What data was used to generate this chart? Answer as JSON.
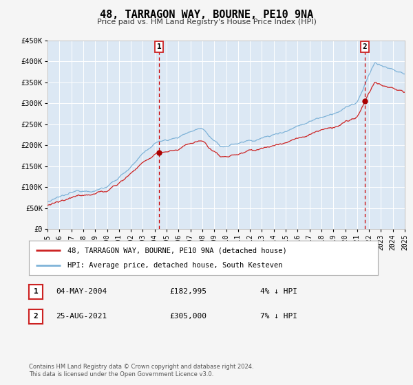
{
  "title": "48, TARRAGON WAY, BOURNE, PE10 9NA",
  "subtitle": "Price paid vs. HM Land Registry's House Price Index (HPI)",
  "ylim": [
    0,
    450000
  ],
  "xlim_start": 1995,
  "xlim_end": 2025,
  "fig_bg_color": "#f5f5f5",
  "plot_bg_color": "#dce8f4",
  "grid_color": "#ffffff",
  "hpi_line_color": "#7fb3d8",
  "price_line_color": "#cc2222",
  "vline_color": "#cc0000",
  "marker_color": "#aa0000",
  "sale1_x": 2004.37,
  "sale1_y": 182995,
  "sale2_x": 2021.65,
  "sale2_y": 305000,
  "legend_label1": "48, TARRAGON WAY, BOURNE, PE10 9NA (detached house)",
  "legend_label2": "HPI: Average price, detached house, South Kesteven",
  "ann1": [
    "1",
    "04-MAY-2004",
    "£182,995",
    "4% ↓ HPI"
  ],
  "ann2": [
    "2",
    "25-AUG-2021",
    "£305,000",
    "7% ↓ HPI"
  ],
  "footer": "Contains HM Land Registry data © Crown copyright and database right 2024.\nThis data is licensed under the Open Government Licence v3.0.",
  "yticks": [
    0,
    50000,
    100000,
    150000,
    200000,
    250000,
    300000,
    350000,
    400000,
    450000
  ],
  "ytick_labels": [
    "£0",
    "£50K",
    "£100K",
    "£150K",
    "£200K",
    "£250K",
    "£300K",
    "£350K",
    "£400K",
    "£450K"
  ],
  "xticks": [
    1995,
    1996,
    1997,
    1998,
    1999,
    2000,
    2001,
    2002,
    2003,
    2004,
    2005,
    2006,
    2007,
    2008,
    2009,
    2010,
    2011,
    2012,
    2013,
    2014,
    2015,
    2016,
    2017,
    2018,
    2019,
    2020,
    2021,
    2022,
    2023,
    2024,
    2025
  ]
}
